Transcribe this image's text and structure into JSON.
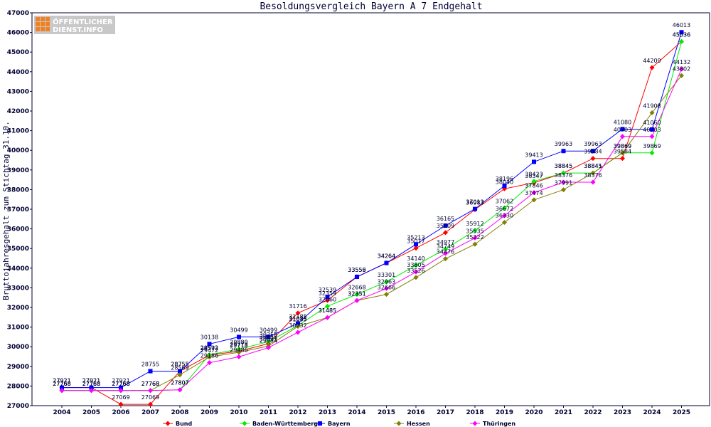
{
  "chart_data": {
    "type": "line",
    "title": "Besoldungsvergleich Bayern A 7 Endgehalt",
    "ylabel": "Bruttojahresgehalt zum Stichtag 31.10.",
    "xlabel": "",
    "ylim": [
      27000,
      47000
    ],
    "yticks": [
      27000,
      28000,
      29000,
      30000,
      31000,
      32000,
      33000,
      34000,
      35000,
      36000,
      37000,
      38000,
      39000,
      40000,
      41000,
      42000,
      43000,
      44000,
      45000,
      46000,
      47000
    ],
    "categories": [
      "2004",
      "2005",
      "2006",
      "2007",
      "2008",
      "2009",
      "2010",
      "2011",
      "2012",
      "2013",
      "2014",
      "2015",
      "2016",
      "2017",
      "2018",
      "2019",
      "2020",
      "2021",
      "2022",
      "2023",
      "2024",
      "2025"
    ],
    "grid": false,
    "legend": "bottom",
    "series": [
      {
        "name": "Bund",
        "color": "#ff0000",
        "values": [
          27921,
          27921,
          27069,
          27069,
          28755,
          29573,
          29773,
          30155,
          31716,
          32359,
          33556,
          34264,
          35017,
          35809,
          36983,
          38040,
          38347,
          38845,
          39584,
          39584,
          44209,
          45536
        ]
      },
      {
        "name": "Baden-Württemberg",
        "color": "#00ee00",
        "values": [
          27768,
          27768,
          27768,
          27768,
          27807,
          29592,
          29880,
          30255,
          31085,
          32060,
          32668,
          33301,
          34140,
          34977,
          35912,
          37062,
          38423,
          38845,
          38845,
          39869,
          39869,
          45536
        ]
      },
      {
        "name": "Bayern",
        "color": "#0000ff",
        "values": [
          27921,
          27921,
          27921,
          28755,
          28755,
          30138,
          30499,
          30499,
          31185,
          32539,
          33559,
          34264,
          35213,
          36165,
          37013,
          38196,
          39413,
          39963,
          39963,
          41080,
          41060,
          46013
        ]
      },
      {
        "name": "Hessen",
        "color": "#808000",
        "values": [
          27768,
          27768,
          27768,
          27768,
          28569,
          29472,
          29718,
          30031,
          31035,
          31485,
          32351,
          32666,
          33526,
          34476,
          35222,
          36330,
          37474,
          37991,
          38841,
          39869,
          41908,
          43802
        ]
      },
      {
        "name": "Thüringen",
        "color": "#ff00ff",
        "values": [
          27768,
          27768,
          27768,
          27768,
          27807,
          29186,
          29486,
          29954,
          30732,
          31485,
          32351,
          32963,
          33805,
          34749,
          35535,
          36672,
          37846,
          38376,
          38376,
          40703,
          40703,
          44132
        ]
      }
    ]
  },
  "logo": {
    "line1": "ÖFFENTLICHER",
    "line2": "DIENST.INFO"
  }
}
